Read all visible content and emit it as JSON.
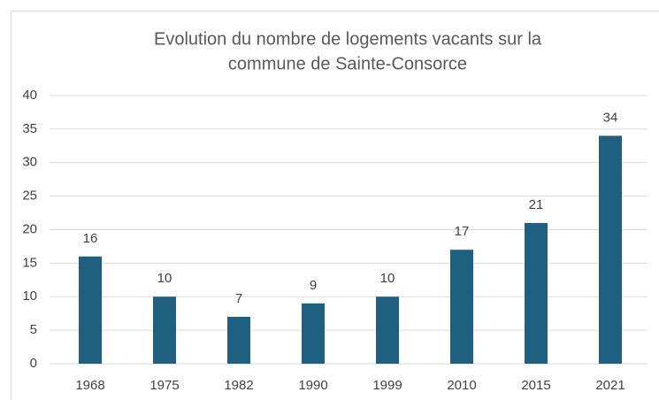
{
  "chart_data": {
    "type": "bar",
    "title": [
      "Evolution du nombre de logements vacants sur la",
      "commune de Sainte-Consorce"
    ],
    "categories": [
      "1968",
      "1975",
      "1982",
      "1990",
      "1999",
      "2010",
      "2015",
      "2021"
    ],
    "values": [
      16,
      10,
      7,
      9,
      10,
      17,
      21,
      34
    ],
    "color": "#1f5f80",
    "ylim": [
      0,
      40
    ],
    "yticks": [
      0,
      5,
      10,
      15,
      20,
      25,
      30,
      35,
      40
    ],
    "grid": true,
    "data_labels": true
  }
}
